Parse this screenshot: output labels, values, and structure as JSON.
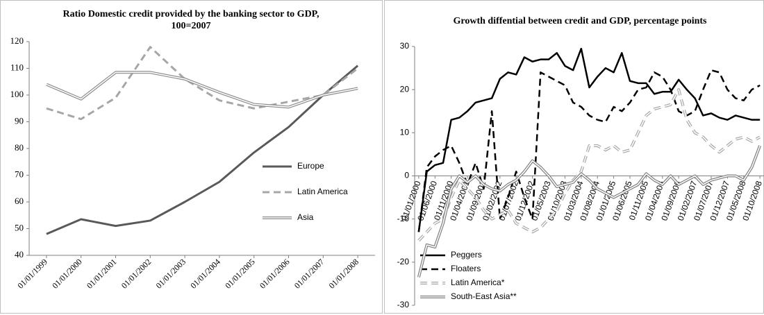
{
  "chart_data": [
    {
      "type": "line",
      "title": "Ratio Domestic credit provided by the banking sector to GDP, 100=2007",
      "categories": [
        "01/01/1999",
        "01/01/2000",
        "01/01/2001",
        "01/01/2002",
        "01/01/2003",
        "01/01/2004",
        "01/01/2005",
        "01/01/2006",
        "01/01/2007",
        "01/01/2008"
      ],
      "series": [
        {
          "name": "Europe",
          "color": "#595959",
          "style": "solid",
          "values": [
            48,
            53.5,
            51,
            53,
            60,
            67.5,
            78.5,
            88,
            100,
            111
          ]
        },
        {
          "name": "Latin America",
          "color": "#a6a6a6",
          "style": "dashed",
          "values": [
            95,
            91,
            99,
            118,
            106,
            98,
            95,
            97.5,
            100,
            110
          ]
        },
        {
          "name": "Asia",
          "color": "#8c8c8c",
          "style": "double",
          "values": [
            104,
            98.5,
            108.5,
            108.5,
            106,
            101,
            96.5,
            95.5,
            100,
            102.5
          ]
        }
      ],
      "ylim": [
        40,
        120
      ],
      "yticks": [
        40,
        50,
        60,
        70,
        80,
        90,
        100,
        110,
        120
      ],
      "legend": "lower right",
      "grid": false
    },
    {
      "type": "line",
      "title": "Growth diffential between credit and GDP, percentage points",
      "categories": [
        "01/01/2000",
        null,
        "01/06/2000",
        null,
        "01/11/2000",
        null,
        "01/04/2001",
        null,
        "01/09/2001",
        null,
        "01/02/2002",
        null,
        "01/07/2002",
        null,
        "01/12/2002",
        null,
        "01/05/2003",
        null,
        "01/10/2003",
        null,
        "01/03/2004",
        null,
        "01/08/2004",
        null,
        "01/01/2005",
        null,
        "01/06/2005",
        null,
        "01/11/2005",
        null,
        "01/04/2006",
        null,
        "01/09/2006",
        null,
        "01/02/2007",
        null,
        "01/07/2007",
        null,
        "01/12/2007",
        null,
        "01/05/2008",
        null,
        "01/10/2008"
      ],
      "series": [
        {
          "name": "Peggers",
          "color": "#000000",
          "style": "solid",
          "values": [
            -13,
            1,
            2.5,
            3,
            13,
            13.5,
            15,
            17,
            17.5,
            18,
            22.5,
            24,
            23.5,
            27.5,
            26.5,
            27,
            27,
            28.5,
            25.5,
            24.5,
            29.5,
            20.5,
            23,
            25,
            24,
            28.5,
            22,
            21.5,
            21.5,
            19,
            19.5,
            19.5,
            22.3,
            20,
            18,
            14,
            14.5,
            13.5,
            13,
            14,
            13.5,
            13,
            13
          ]
        },
        {
          "name": "Floaters",
          "color": "#000000",
          "style": "dashed",
          "values": [
            -13,
            2,
            4.5,
            6,
            7,
            3,
            -2,
            3,
            -3,
            15,
            -10,
            -5,
            1,
            -5,
            -10,
            24,
            23,
            22,
            21,
            17,
            16,
            14,
            13,
            12.5,
            16,
            15,
            17,
            20,
            20.5,
            24,
            23,
            20,
            15,
            14,
            15,
            20,
            24.5,
            24,
            20,
            18,
            17.5,
            20,
            21
          ]
        },
        {
          "name": "Latin America*",
          "color": "#a6a6a6",
          "style": "dashed-double",
          "values": [
            -15,
            -13,
            -11,
            -10,
            -5,
            -1,
            -3,
            -5,
            -8,
            -10,
            -9,
            -8,
            -11,
            -12,
            -13,
            -12,
            -10,
            -8,
            -4,
            -1,
            1,
            7,
            7,
            6,
            7,
            5.5,
            6,
            10,
            14,
            15.5,
            16,
            16.5,
            20,
            13,
            10,
            9,
            7,
            5.5,
            7,
            8.5,
            9,
            8,
            9
          ]
        },
        {
          "name": "South-East Asia**",
          "color": "#7f7f7f",
          "style": "double",
          "values": [
            -23.5,
            -16,
            -16.5,
            -11,
            -3,
            0,
            -1.5,
            0,
            -2,
            -3,
            -3.5,
            -2,
            -1,
            1,
            3.5,
            2,
            0,
            -2.5,
            -2,
            -1.5,
            0.5,
            -1,
            -3,
            -4,
            -5,
            -4,
            -3,
            -2,
            0.5,
            -1,
            -2,
            0,
            -2,
            -1,
            0,
            -2,
            -1,
            -0.5,
            0,
            0,
            -1,
            2,
            7
          ]
        }
      ],
      "ylim": [
        -30,
        30
      ],
      "yticks": [
        -30,
        -20,
        -10,
        0,
        10,
        20,
        30
      ],
      "legend": "lower left",
      "grid": false
    }
  ]
}
